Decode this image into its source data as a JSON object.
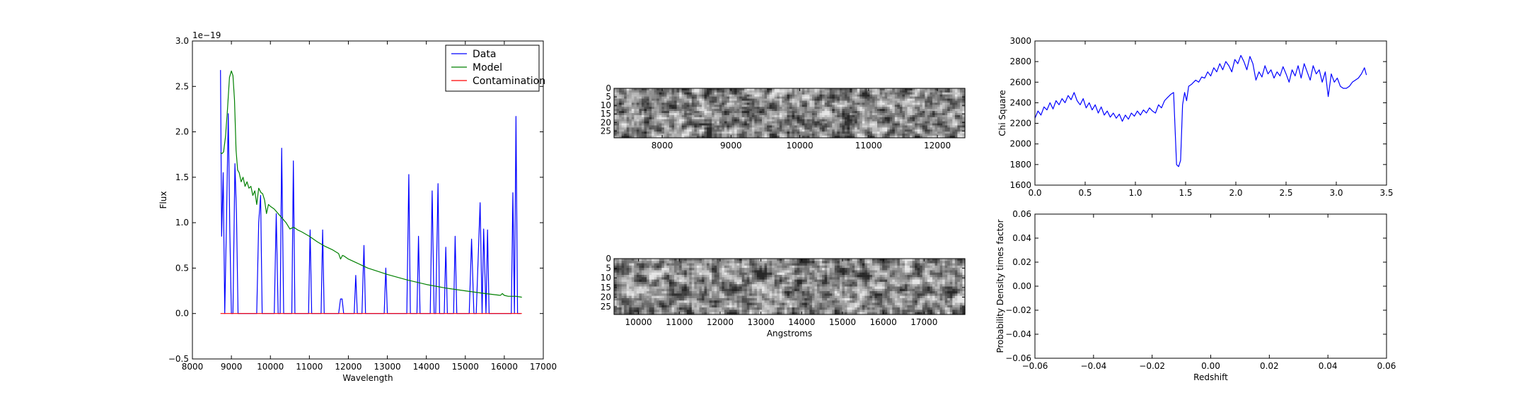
{
  "colors": {
    "data": "#0000ff",
    "model": "#008000",
    "contamination": "#ff0000",
    "axis": "#000000"
  },
  "chart_data": [
    {
      "id": "spectrum",
      "type": "line",
      "title": "",
      "xlabel": "Wavelength",
      "ylabel": "Flux",
      "offset_text": "1e−19",
      "xlim": [
        8000,
        17000
      ],
      "ylim": [
        -0.5,
        3.0
      ],
      "xticks": [
        8000,
        9000,
        10000,
        11000,
        12000,
        13000,
        14000,
        15000,
        16000,
        17000
      ],
      "xtick_labels": [
        "8000",
        "9000",
        "10000",
        "11000",
        "12000",
        "13000",
        "14000",
        "15000",
        "16000",
        "17000"
      ],
      "yticks": [
        -0.5,
        0.0,
        0.5,
        1.0,
        1.5,
        2.0,
        2.5,
        3.0
      ],
      "ytick_labels": [
        "−0.5",
        "0.0",
        "0.5",
        "1.0",
        "1.5",
        "2.0",
        "2.5",
        "3.0"
      ],
      "legend": {
        "placement": "top-right",
        "entries": [
          "Data",
          "Model",
          "Contamination"
        ]
      },
      "series": [
        {
          "name": "Data",
          "color_key": "data",
          "x": [
            8720,
            8750,
            8790,
            8830,
            8870,
            8920,
            8960,
            9000,
            9040,
            9090,
            9130,
            9170,
            9210,
            9250,
            9300,
            9650,
            9700,
            9750,
            9790,
            9830,
            10100,
            10150,
            10200,
            10250,
            10290,
            10340,
            10380,
            10430,
            10550,
            10590,
            10630,
            10670,
            10720,
            10980,
            11020,
            11060,
            11300,
            11340,
            11380,
            11420,
            11750,
            11800,
            11840,
            11880,
            12150,
            12190,
            12230,
            12350,
            12400,
            12440,
            12480,
            12920,
            12960,
            13000,
            13500,
            13550,
            13590,
            13640,
            13760,
            13800,
            13840,
            14100,
            14150,
            14200,
            14240,
            14300,
            14340,
            14390,
            14460,
            14500,
            14540,
            14700,
            14740,
            14780,
            15100,
            15160,
            15220,
            15280,
            15380,
            15430,
            15470,
            15530,
            15570,
            15610,
            15650,
            15700,
            15740,
            16180,
            16220,
            16260,
            16300,
            16340,
            16380,
            16420
          ],
          "y": [
            2.68,
            0.85,
            1.55,
            0.0,
            0.9,
            2.2,
            0.9,
            0.0,
            0.0,
            1.65,
            1.1,
            0.0,
            0.0,
            0.0,
            0.0,
            0.0,
            1.0,
            1.3,
            0.0,
            0.0,
            0.0,
            1.1,
            0.0,
            0.0,
            1.82,
            0.0,
            0.0,
            0.0,
            0.0,
            1.68,
            0.0,
            0.0,
            0.0,
            0.0,
            0.92,
            0.0,
            0.0,
            0.92,
            0.0,
            0.0,
            0.0,
            0.16,
            0.16,
            0.0,
            0.0,
            0.42,
            0.0,
            0.0,
            0.75,
            0.0,
            0.0,
            0.0,
            0.5,
            0.0,
            0.0,
            1.53,
            0.0,
            0.0,
            0.0,
            0.85,
            0.0,
            0.0,
            1.35,
            0.0,
            0.0,
            1.43,
            0.0,
            0.0,
            0.0,
            0.73,
            0.0,
            0.0,
            0.85,
            0.0,
            0.0,
            0.82,
            0.0,
            0.0,
            1.22,
            0.0,
            0.93,
            0.0,
            0.92,
            0.0,
            0.0,
            0.0,
            0.0,
            0.0,
            1.33,
            0.0,
            2.17,
            0.0,
            0.0,
            0.0
          ]
        },
        {
          "name": "Model",
          "color_key": "model",
          "x": [
            8720,
            8760,
            8800,
            8850,
            8900,
            8950,
            9000,
            9040,
            9080,
            9120,
            9160,
            9200,
            9250,
            9300,
            9350,
            9400,
            9450,
            9500,
            9550,
            9600,
            9650,
            9700,
            9760,
            9800,
            9850,
            9900,
            9950,
            10000,
            10100,
            10200,
            10300,
            10400,
            10500,
            10600,
            10700,
            10800,
            11000,
            11200,
            11400,
            11600,
            11750,
            11800,
            11850,
            11900,
            12000,
            12200,
            12500,
            13000,
            13500,
            14000,
            14500,
            15000,
            15500,
            15900,
            15950,
            16000,
            16100,
            16300,
            16450
          ],
          "y": [
            1.77,
            1.76,
            1.78,
            1.95,
            2.25,
            2.6,
            2.67,
            2.62,
            2.35,
            1.8,
            1.58,
            1.55,
            1.45,
            1.5,
            1.4,
            1.45,
            1.38,
            1.4,
            1.3,
            1.35,
            1.2,
            1.38,
            1.33,
            1.32,
            1.25,
            1.1,
            1.2,
            1.18,
            1.15,
            1.1,
            1.05,
            1.0,
            0.93,
            0.95,
            0.92,
            0.9,
            0.85,
            0.79,
            0.74,
            0.7,
            0.66,
            0.6,
            0.64,
            0.63,
            0.6,
            0.56,
            0.5,
            0.43,
            0.37,
            0.32,
            0.28,
            0.25,
            0.22,
            0.2,
            0.22,
            0.2,
            0.19,
            0.19,
            0.18
          ]
        },
        {
          "name": "Contamination",
          "color_key": "contamination",
          "x": [
            8720,
            16450
          ],
          "y": [
            0.0,
            0.0
          ]
        }
      ]
    },
    {
      "id": "image-top",
      "type": "heatmap",
      "title": "",
      "xlabel": "",
      "ylabel": "",
      "xlim": [
        7300,
        12400
      ],
      "ylim": [
        29,
        0
      ],
      "xticks": [
        8000,
        9000,
        10000,
        11000,
        12000
      ],
      "xtick_labels": [
        "8000",
        "9000",
        "10000",
        "11000",
        "12000"
      ],
      "yticks": [
        0,
        5,
        10,
        15,
        20,
        25
      ],
      "ytick_labels": [
        "0",
        "5",
        "10",
        "15",
        "20",
        "25"
      ],
      "colormap": "gray",
      "noise_seed": 17
    },
    {
      "id": "image-bottom",
      "type": "heatmap",
      "title": "",
      "xlabel": "Angstroms",
      "ylabel": "",
      "xlim": [
        9400,
        18000
      ],
      "ylim": [
        29,
        0
      ],
      "xticks": [
        10000,
        11000,
        12000,
        13000,
        14000,
        15000,
        16000,
        17000
      ],
      "xtick_labels": [
        "10000",
        "11000",
        "12000",
        "13000",
        "14000",
        "15000",
        "16000",
        "17000"
      ],
      "yticks": [
        0,
        5,
        10,
        15,
        20,
        25
      ],
      "ytick_labels": [
        "0",
        "5",
        "10",
        "15",
        "20",
        "25"
      ],
      "colormap": "gray",
      "noise_seed": 41
    },
    {
      "id": "chi-square",
      "type": "line",
      "title": "",
      "xlabel": "",
      "ylabel": "Chi Square",
      "xlim": [
        0.0,
        3.5
      ],
      "ylim": [
        1600,
        3000
      ],
      "xticks": [
        0.0,
        0.5,
        1.0,
        1.5,
        2.0,
        2.5,
        3.0,
        3.5
      ],
      "xtick_labels": [
        "0.0",
        "0.5",
        "1.0",
        "1.5",
        "2.0",
        "2.5",
        "3.0",
        "3.5"
      ],
      "yticks": [
        1600,
        1800,
        2000,
        2200,
        2400,
        2600,
        2800,
        3000
      ],
      "ytick_labels": [
        "1600",
        "1800",
        "2000",
        "2200",
        "2400",
        "2600",
        "2800",
        "3000"
      ],
      "series": [
        {
          "name": "",
          "color_key": "data",
          "x": [
            0.0,
            0.03,
            0.06,
            0.09,
            0.12,
            0.15,
            0.18,
            0.21,
            0.24,
            0.27,
            0.3,
            0.33,
            0.36,
            0.39,
            0.42,
            0.45,
            0.48,
            0.51,
            0.54,
            0.57,
            0.6,
            0.63,
            0.66,
            0.69,
            0.72,
            0.75,
            0.78,
            0.81,
            0.84,
            0.87,
            0.9,
            0.93,
            0.96,
            0.99,
            1.02,
            1.05,
            1.08,
            1.11,
            1.14,
            1.17,
            1.2,
            1.23,
            1.26,
            1.29,
            1.32,
            1.35,
            1.38,
            1.41,
            1.43,
            1.45,
            1.47,
            1.49,
            1.51,
            1.53,
            1.56,
            1.6,
            1.63,
            1.66,
            1.69,
            1.72,
            1.75,
            1.78,
            1.81,
            1.84,
            1.87,
            1.9,
            1.93,
            1.96,
            1.99,
            2.02,
            2.05,
            2.08,
            2.11,
            2.14,
            2.17,
            2.2,
            2.23,
            2.26,
            2.29,
            2.32,
            2.35,
            2.38,
            2.41,
            2.44,
            2.47,
            2.5,
            2.53,
            2.56,
            2.59,
            2.62,
            2.65,
            2.68,
            2.71,
            2.74,
            2.77,
            2.8,
            2.83,
            2.86,
            2.89,
            2.92,
            2.95,
            2.98,
            3.01,
            3.04,
            3.07,
            3.1,
            3.13,
            3.16,
            3.19,
            3.22,
            3.25,
            3.28,
            3.3
          ],
          "y": [
            2250,
            2320,
            2280,
            2360,
            2330,
            2400,
            2340,
            2420,
            2380,
            2440,
            2400,
            2470,
            2430,
            2500,
            2420,
            2380,
            2440,
            2350,
            2400,
            2330,
            2380,
            2300,
            2360,
            2280,
            2320,
            2260,
            2300,
            2250,
            2290,
            2220,
            2280,
            2240,
            2300,
            2270,
            2320,
            2280,
            2330,
            2300,
            2350,
            2320,
            2300,
            2380,
            2350,
            2420,
            2450,
            2480,
            2500,
            1800,
            1780,
            1840,
            2380,
            2500,
            2420,
            2560,
            2580,
            2620,
            2600,
            2650,
            2640,
            2700,
            2660,
            2740,
            2700,
            2780,
            2720,
            2800,
            2760,
            2700,
            2820,
            2780,
            2860,
            2800,
            2720,
            2850,
            2780,
            2620,
            2700,
            2650,
            2760,
            2680,
            2720,
            2640,
            2700,
            2660,
            2750,
            2680,
            2600,
            2720,
            2660,
            2760,
            2640,
            2780,
            2700,
            2620,
            2760,
            2680,
            2720,
            2600,
            2700,
            2460,
            2680,
            2600,
            2640,
            2560,
            2540,
            2540,
            2560,
            2600,
            2620,
            2640,
            2680,
            2740,
            2670
          ]
        }
      ]
    },
    {
      "id": "probability",
      "type": "line",
      "title": "",
      "xlabel": "Redshift",
      "ylabel": "Probability Density times factor",
      "xlim": [
        -0.06,
        0.06
      ],
      "ylim": [
        -0.06,
        0.06
      ],
      "xticks": [
        -0.06,
        -0.04,
        -0.02,
        0.0,
        0.02,
        0.04,
        0.06
      ],
      "xtick_labels": [
        "−0.06",
        "−0.04",
        "−0.02",
        "0.00",
        "0.02",
        "0.04",
        "0.06"
      ],
      "yticks": [
        -0.06,
        -0.04,
        -0.02,
        0.0,
        0.02,
        0.04,
        0.06
      ],
      "ytick_labels": [
        "−0.06",
        "−0.04",
        "−0.02",
        "0.00",
        "0.02",
        "0.04",
        "0.06"
      ],
      "series": []
    }
  ]
}
